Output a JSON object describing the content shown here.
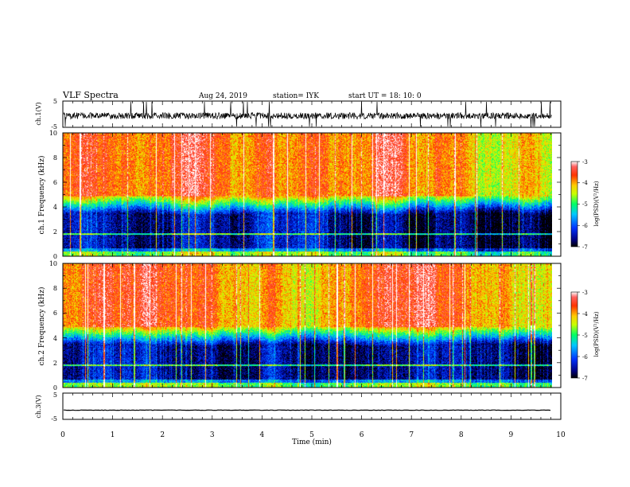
{
  "header": {
    "title": "VLF Spectra",
    "date": "Aug 24, 2019",
    "station": "station= IYK",
    "start": "start UT = 18: 10: 0"
  },
  "chart_data": [
    {
      "type": "line",
      "panel": "ch1-waveform",
      "ylabel": "ch.1(V)",
      "ylim": [
        -5,
        5
      ],
      "yticks": [
        "5",
        "-5"
      ],
      "baseline": 0,
      "noise": "high amplitude impulsive spikes reaching +/-5 V"
    },
    {
      "type": "heatmap",
      "panel": "ch1-spectrogram",
      "ylabel": "ch.1 Frequency (kHz)",
      "ylim": [
        0,
        10
      ],
      "yticks": [
        "0",
        "2",
        "4",
        "6",
        "8",
        "10"
      ],
      "colorbar": {
        "label": "log(PSD)(V²/Hz)",
        "ticks": [
          "-3",
          "-4",
          "-5",
          "-6",
          "-7"
        ],
        "range": [
          -7,
          -3
        ]
      },
      "features": {
        "quiet_band_khz": [
          0.5,
          3.5
        ],
        "tone_khz": 1.8,
        "transition_khz": 4.5,
        "high_band_khz": [
          5,
          10
        ]
      }
    },
    {
      "type": "heatmap",
      "panel": "ch2-spectrogram",
      "ylabel": "ch.2 Frequency (kHz)",
      "ylim": [
        0,
        10
      ],
      "yticks": [
        "0",
        "2",
        "4",
        "6",
        "8",
        "10"
      ],
      "colorbar": {
        "label": "log(PSD)(V²/Hz)",
        "ticks": [
          "-3",
          "-4",
          "-5",
          "-6",
          "-7"
        ],
        "range": [
          -7,
          -3
        ]
      },
      "features": {
        "quiet_band_khz": [
          0.5,
          3.5
        ],
        "tone_khz": 1.8,
        "transition_khz": 4.5,
        "high_band_khz": [
          5,
          10
        ]
      }
    },
    {
      "type": "line",
      "panel": "ch3-waveform",
      "ylabel": "ch.3(V)",
      "ylim": [
        -5,
        5
      ],
      "yticks": [
        "5",
        "-5"
      ],
      "baseline": -1.5
    }
  ],
  "xaxis": {
    "label": "Time  (min)",
    "xlim": [
      0,
      10
    ],
    "data_end": 9.82,
    "ticks": [
      "0",
      "1",
      "2",
      "3",
      "4",
      "5",
      "6",
      "7",
      "8",
      "9",
      "10"
    ]
  }
}
